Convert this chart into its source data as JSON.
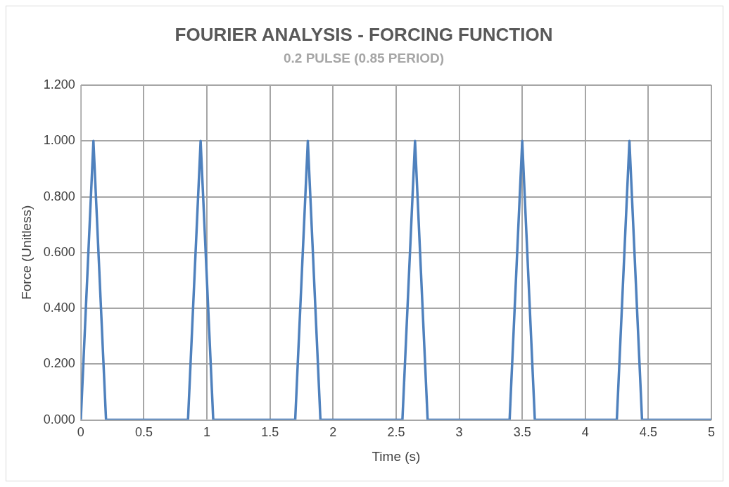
{
  "chart_data": {
    "type": "line",
    "title": "FOURIER ANALYSIS - FORCING FUNCTION",
    "subtitle": "0.2 PULSE (0.85 PERIOD)",
    "xlabel": "Time (s)",
    "ylabel": "Force (Unitless)",
    "x": [
      0,
      0.1,
      0.2,
      0.85,
      0.95,
      1.05,
      1.7,
      1.8,
      1.9,
      2.55,
      2.65,
      2.75,
      3.4,
      3.5,
      3.6,
      4.25,
      4.35,
      4.45,
      5
    ],
    "series": [
      {
        "color": "#4f81bd",
        "values": [
          0,
          1,
          0,
          0,
          1,
          0,
          0,
          1,
          0,
          0,
          1,
          0,
          0,
          1,
          0,
          0,
          1,
          0,
          0
        ]
      }
    ],
    "xlim": [
      0,
      5
    ],
    "xticks": [
      0,
      0.5,
      1,
      1.5,
      2,
      2.5,
      3,
      3.5,
      4,
      4.5,
      5
    ],
    "ylim": [
      0,
      1.2
    ],
    "yticks": [
      {
        "value": 0,
        "label": "0.000"
      },
      {
        "value": 0.2,
        "label": "0.200"
      },
      {
        "value": 0.4,
        "label": "0.400"
      },
      {
        "value": 0.6,
        "label": "0.600"
      },
      {
        "value": 0.8,
        "label": "0.800"
      },
      {
        "value": 1,
        "label": "1.000"
      },
      {
        "value": 1.2,
        "label": "1.200"
      }
    ],
    "grid": true,
    "legend": false,
    "marker": "none",
    "line_style": "solid"
  }
}
